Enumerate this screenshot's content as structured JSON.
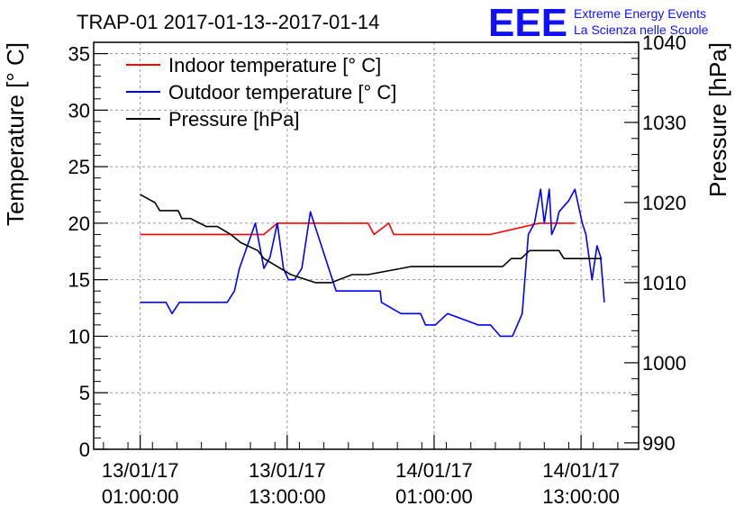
{
  "chart_data": {
    "type": "line",
    "title": "TRAP-01 2017-01-13--2017-01-14",
    "logo": {
      "text": "EEE",
      "line1": "Extreme Energy Events",
      "line2": "La Scienza nelle Scuole",
      "color": "#1010ff"
    },
    "xlabel": "",
    "ylabel": "Temperature [° C]",
    "y2label": "Pressure [hPa]",
    "x_unit": "hours since 2017-01-13 00:00",
    "xlim": [
      -2.8,
      41.7
    ],
    "ylim": [
      0,
      36
    ],
    "y2lim": [
      989.2,
      1040
    ],
    "x_ticks": [
      {
        "x": 1,
        "line1": "13/01/17",
        "line2": "01:00:00"
      },
      {
        "x": 13,
        "line1": "13/01/17",
        "line2": "13:00:00"
      },
      {
        "x": 25,
        "line1": "14/01/17",
        "line2": "01:00:00"
      },
      {
        "x": 37,
        "line1": "14/01/17",
        "line2": "13:00:00"
      }
    ],
    "y_ticks": [
      "0",
      "5",
      "10",
      "15",
      "20",
      "25",
      "30",
      "35"
    ],
    "y2_ticks": [
      "990",
      "1000",
      "1010",
      "1020",
      "1030",
      "1040"
    ],
    "grid": true,
    "legend_position": "top-left",
    "series": [
      {
        "name": "Indoor temperature [° C]",
        "color": "#ff0000",
        "axis": "left",
        "x": [
          1.0,
          11.1,
          12.2,
          16.6,
          19.2,
          19.6,
          20.1,
          21.3,
          21.7,
          29.6,
          33.6,
          36.5
        ],
        "y": [
          19,
          19,
          20,
          20,
          20,
          20,
          19,
          20,
          19,
          19,
          20,
          20
        ]
      },
      {
        "name": "Outdoor temperature [° C]",
        "color": "#0000ff",
        "axis": "left",
        "x": [
          1.0,
          3.1,
          3.6,
          4.2,
          8.1,
          8.7,
          9.1,
          10.4,
          11.1,
          11.6,
          12.2,
          12.7,
          13.1,
          13.6,
          14.2,
          14.9,
          17.0,
          20.6,
          20.7,
          22.3,
          23.9,
          24.3,
          24.6,
          25.1,
          26.1,
          28.6,
          29.6,
          30.4,
          30.7,
          31.4,
          32.2,
          32.7,
          33.2,
          33.7,
          34.0,
          34.4,
          34.6,
          35.0,
          35.2,
          36.0,
          36.5,
          36.7,
          37.1,
          37.4,
          37.9,
          38.3,
          38.6,
          38.9
        ],
        "y": [
          13,
          13,
          12,
          13,
          13,
          14,
          16,
          20,
          16,
          17,
          20,
          16,
          15,
          15,
          16,
          21,
          14,
          14,
          13,
          12,
          12,
          11,
          11,
          11,
          12,
          11,
          11,
          10,
          10,
          10,
          12,
          19,
          20,
          23,
          20,
          23,
          19,
          20,
          21,
          22,
          23,
          22,
          20,
          19,
          15,
          18,
          17,
          13
        ]
      },
      {
        "name": "Pressure [hPa]",
        "color": "#000000",
        "axis": "right",
        "x": [
          1.0,
          2.2,
          2.6,
          4.1,
          4.4,
          5.1,
          6.4,
          7.3,
          8.4,
          9.2,
          10.6,
          11.1,
          12.2,
          13.3,
          15.3,
          16.6,
          18.3,
          19.6,
          23.1,
          30.6,
          31.3,
          32.1,
          32.8,
          34.1,
          35.2,
          35.6,
          36.8,
          38.7
        ],
        "y": [
          1021,
          1020,
          1019,
          1019,
          1018,
          1018,
          1017,
          1017,
          1016,
          1015,
          1014,
          1013,
          1012,
          1011,
          1010,
          1010,
          1011,
          1011,
          1012,
          1012,
          1013,
          1013,
          1014,
          1014,
          1014,
          1013,
          1013,
          1013
        ]
      }
    ]
  }
}
